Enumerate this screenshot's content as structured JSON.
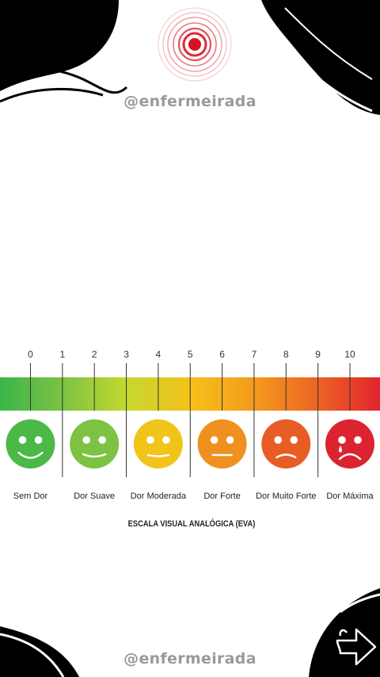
{
  "header": {
    "handle": "@enfermeirada"
  },
  "footer": {
    "handle": "@enfermeirada"
  },
  "scale": {
    "title": "ESCALA VISUAL ANALÓGICA (EVA)",
    "ticks": [
      "0",
      "1",
      "2",
      "3",
      "4",
      "5",
      "6",
      "7",
      "8",
      "9",
      "10"
    ],
    "levels": [
      {
        "label": "Sem Dor",
        "face": "big-smile-icon",
        "color": "#4cb848"
      },
      {
        "label": "Dor Suave",
        "face": "smile-icon",
        "color": "#7dc243"
      },
      {
        "label": "Dor Moderada",
        "face": "neutral-smile-icon",
        "color": "#f1c419"
      },
      {
        "label": "Dor Forte",
        "face": "neutral-face-icon",
        "color": "#f0901e"
      },
      {
        "label": "Dor Muito Forte",
        "face": "frown-icon",
        "color": "#e85d25"
      },
      {
        "label": "Dor Máxima",
        "face": "crying-face-icon",
        "color": "#dc2330"
      }
    ],
    "gradient_colors": [
      "#3bb54a",
      "#7dc243",
      "#c5d82f",
      "#f6c11a",
      "#f49b1d",
      "#ec6524",
      "#e2242e"
    ]
  },
  "navigation": {
    "next_icon": "arrow-right-icon"
  }
}
